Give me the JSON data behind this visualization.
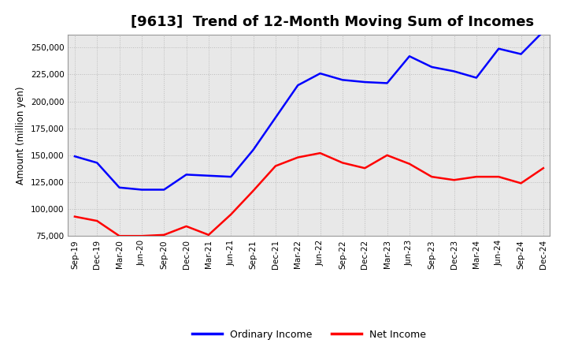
{
  "title": "[9613]  Trend of 12-Month Moving Sum of Incomes",
  "ylabel": "Amount (million yen)",
  "background_color": "#ffffff",
  "plot_bg_color": "#e8e8e8",
  "grid_color": "#bbbbbb",
  "x_labels": [
    "Sep-19",
    "Dec-19",
    "Mar-20",
    "Jun-20",
    "Sep-20",
    "Dec-20",
    "Mar-21",
    "Jun-21",
    "Sep-21",
    "Dec-21",
    "Mar-22",
    "Jun-22",
    "Sep-22",
    "Dec-22",
    "Mar-23",
    "Jun-23",
    "Sep-23",
    "Dec-23",
    "Mar-24",
    "Jun-24",
    "Sep-24",
    "Dec-24"
  ],
  "ordinary_income": [
    149000,
    143000,
    120000,
    118000,
    118000,
    132000,
    131000,
    130000,
    155000,
    185000,
    215000,
    226000,
    220000,
    218000,
    217000,
    242000,
    232000,
    228000,
    222000,
    249000,
    244000,
    265000
  ],
  "net_income": [
    93000,
    89000,
    75000,
    75000,
    76000,
    84000,
    76000,
    95000,
    117000,
    140000,
    148000,
    152000,
    143000,
    138000,
    150000,
    142000,
    130000,
    127000,
    130000,
    130000,
    124000,
    138000
  ],
  "ordinary_color": "#0000ff",
  "net_color": "#ff0000",
  "ylim_min": 75000,
  "ylim_max": 262000,
  "yticks": [
    75000,
    100000,
    125000,
    150000,
    175000,
    200000,
    225000,
    250000
  ],
  "line_width": 1.8,
  "title_fontsize": 13,
  "tick_fontsize": 7.5,
  "legend_fontsize": 9,
  "ylabel_fontsize": 8.5
}
